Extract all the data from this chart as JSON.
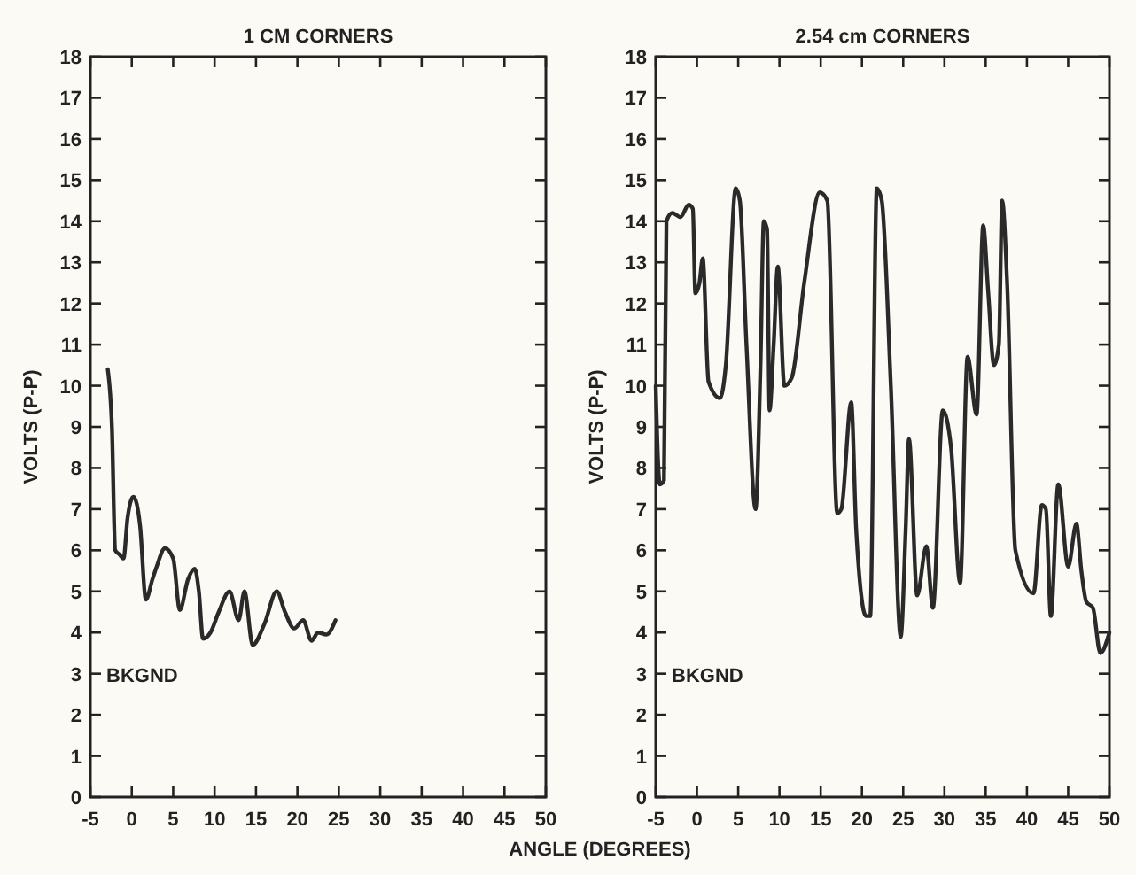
{
  "chart_data": [
    {
      "type": "line",
      "title": "1 CM CORNERS",
      "xlabel": "ANGLE (DEGREES)",
      "ylabel": "VOLTS (P-P)",
      "xlim": [
        -5,
        50
      ],
      "ylim": [
        0,
        18
      ],
      "xticks": [
        -5,
        0,
        5,
        10,
        15,
        20,
        25,
        30,
        35,
        40,
        45,
        50
      ],
      "yticks": [
        0,
        1,
        2,
        3,
        4,
        5,
        6,
        7,
        8,
        9,
        10,
        11,
        12,
        13,
        14,
        15,
        16,
        17,
        18
      ],
      "grid": false,
      "annotations": [
        "BKGND"
      ],
      "series": [
        {
          "color": "#2a2a2a",
          "x": [
            -2.9,
            -2.4,
            -2.0,
            -1.5,
            -1.0,
            -0.5,
            0.2,
            1.0,
            1.7,
            2.5,
            3.0,
            4.0,
            5.0,
            5.8,
            6.8,
            7.6,
            8.1,
            8.6,
            9.5,
            10.5,
            11.8,
            12.9,
            13.6,
            14.6,
            16.0,
            17.5,
            18.5,
            19.6,
            20.7,
            21.7,
            22.5,
            23.5,
            24.6
          ],
          "values": [
            10.4,
            9.0,
            6.0,
            5.9,
            5.8,
            6.8,
            7.3,
            6.6,
            4.8,
            5.3,
            5.6,
            6.05,
            5.8,
            4.55,
            5.3,
            5.55,
            5.0,
            3.85,
            4.0,
            4.5,
            5.0,
            4.3,
            5.0,
            3.7,
            4.2,
            5.0,
            4.5,
            4.1,
            4.3,
            3.8,
            4.0,
            3.95,
            4.3
          ]
        }
      ]
    },
    {
      "type": "line",
      "title": "2.54 cm CORNERS",
      "ylabel": "VOLTS (P-P)",
      "xlim": [
        -5,
        50
      ],
      "ylim": [
        0,
        18
      ],
      "xticks": [
        -5,
        0,
        5,
        10,
        15,
        20,
        25,
        30,
        35,
        40,
        45,
        50
      ],
      "yticks": [
        0,
        1,
        2,
        3,
        4,
        5,
        6,
        7,
        8,
        9,
        10,
        11,
        12,
        13,
        14,
        15,
        16,
        17,
        18
      ],
      "grid": false,
      "annotations": [
        "BKGND"
      ],
      "series": [
        {
          "color": "#2a2a2a",
          "x": [
            -5,
            -4.5,
            -4.0,
            -3.7,
            -3,
            -2,
            -1,
            -0.5,
            -0.2,
            0.3,
            0.7,
            1.4,
            2.8,
            3.5,
            4.7,
            5.2,
            6,
            7.1,
            7.7,
            8.1,
            8.5,
            8.8,
            9.3,
            9.8,
            10.6,
            11.5,
            13,
            14.9,
            15.8,
            17.0,
            17.5,
            18.7,
            19.3,
            20.5,
            21.0,
            21.8,
            22.4,
            23.5,
            24.7,
            25.3,
            25.7,
            26.7,
            27.8,
            28.6,
            29.8,
            30.8,
            31.9,
            32.8,
            33.9,
            34.7,
            35.3,
            36.0,
            36.6,
            37.0,
            37.6,
            38.6,
            40.8,
            41.8,
            42.3,
            42.9,
            43.8,
            45.0,
            46.0,
            46.6,
            47.2,
            48.0,
            48.9,
            50
          ],
          "values": [
            10.0,
            7.6,
            7.7,
            14.0,
            14.2,
            14.1,
            14.4,
            14.3,
            12.25,
            12.5,
            13.1,
            10.1,
            9.7,
            10.5,
            14.8,
            14.5,
            11.0,
            7.0,
            10.5,
            14.0,
            13.8,
            9.4,
            11.0,
            12.9,
            10.0,
            10.2,
            12.5,
            14.7,
            14.5,
            6.9,
            7.0,
            9.6,
            6.5,
            4.4,
            4.4,
            14.8,
            14.5,
            10.0,
            3.9,
            6.5,
            8.7,
            4.9,
            6.1,
            4.6,
            9.4,
            8.5,
            5.2,
            10.7,
            9.3,
            13.9,
            12.3,
            10.5,
            11.0,
            14.5,
            12.5,
            6.0,
            4.95,
            7.1,
            7.0,
            4.4,
            7.6,
            5.6,
            6.65,
            5.5,
            4.75,
            4.6,
            3.5,
            4.0
          ]
        }
      ]
    }
  ]
}
